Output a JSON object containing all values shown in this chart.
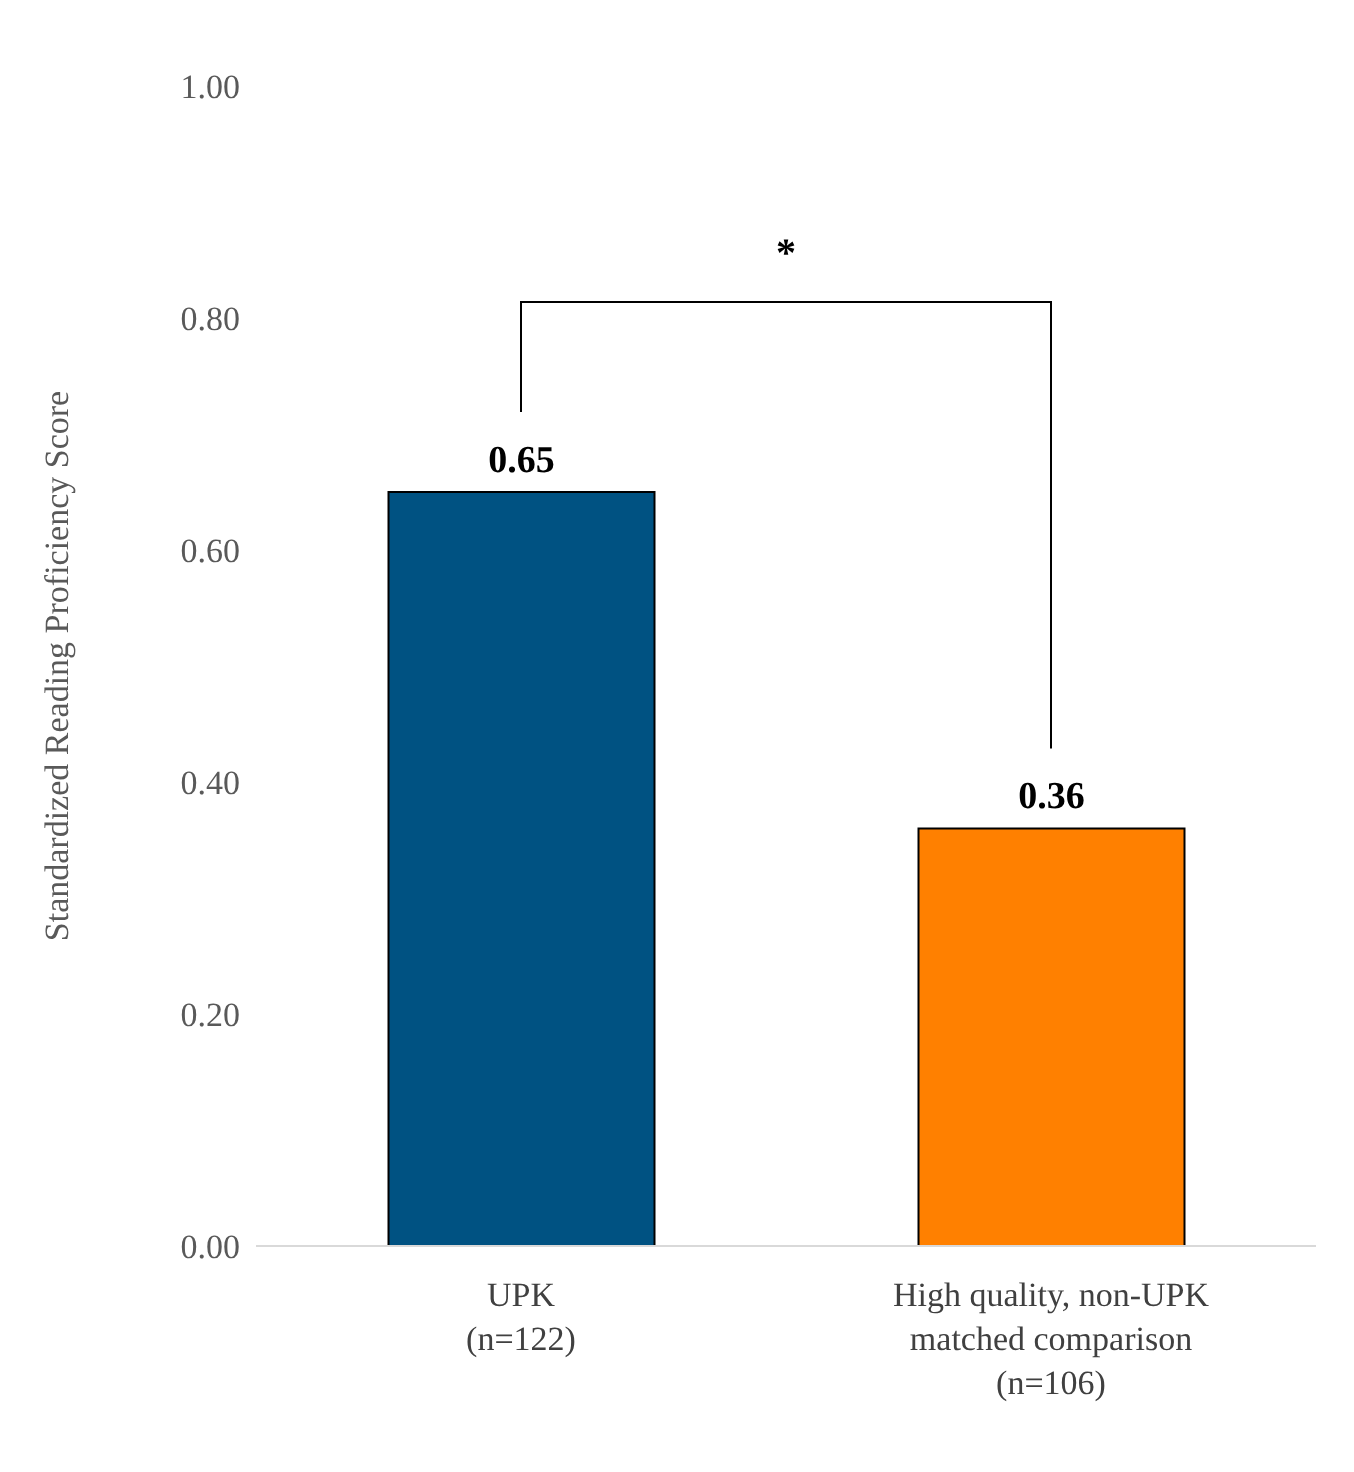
{
  "chart_data": {
    "type": "bar",
    "ylabel": "Standardized Reading Proficiency Score",
    "categories": [
      "UPK\n(n=122)",
      "High quality, non-UPK\nmatched comparison\n(n=106)"
    ],
    "values": [
      0.65,
      0.36
    ],
    "colors": [
      "#005282",
      "#ff8000"
    ],
    "ylim": [
      0,
      1
    ],
    "yticks": [
      {
        "value": 0,
        "label": "0.00"
      },
      {
        "value": 0.2,
        "label": "0.20"
      },
      {
        "value": 0.4,
        "label": "0.40"
      },
      {
        "value": 0.6,
        "label": "0.60"
      },
      {
        "value": 0.8,
        "label": "0.80"
      },
      {
        "value": 1,
        "label": "1.00"
      }
    ],
    "data_labels": true,
    "grid": false,
    "annotations": [
      "*"
    ]
  }
}
